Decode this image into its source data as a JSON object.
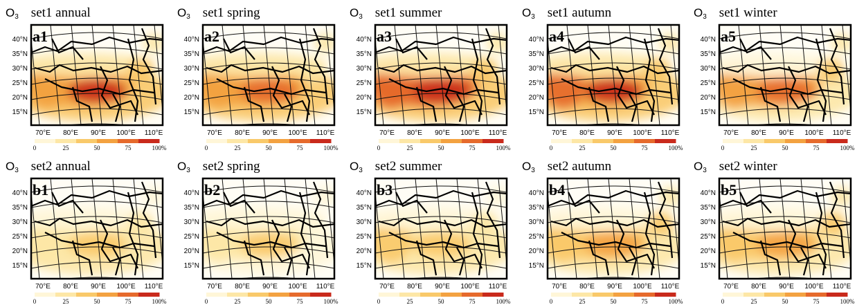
{
  "species": "O",
  "species_subscript": "3",
  "lat_ticks": [
    "40°N",
    "35°N",
    "30°N",
    "25°N",
    "20°N",
    "15°N"
  ],
  "lon_ticks": [
    "70°E",
    "80°E",
    "90°E",
    "100°E",
    "110°E"
  ],
  "colorbar_labels": [
    "0",
    "25",
    "50",
    "75",
    "100%"
  ],
  "colorbar_colors": [
    "#fff6d8",
    "#fde7a6",
    "#f9c96a",
    "#f3a241",
    "#e66a2c",
    "#c92a1c"
  ],
  "panels": [
    {
      "id": "a1",
      "title": "set1 annual",
      "intensity": 0.82,
      "hotspot_east": 0.25
    },
    {
      "id": "a2",
      "title": "set1 spring",
      "intensity": 0.78,
      "hotspot_east": 0.2
    },
    {
      "id": "a3",
      "title": "set1 summer",
      "intensity": 0.9,
      "hotspot_east": 0.15
    },
    {
      "id": "a4",
      "title": "set1 autumn",
      "intensity": 0.88,
      "hotspot_east": 0.3
    },
    {
      "id": "a5",
      "title": "set1 winter",
      "intensity": 0.72,
      "hotspot_east": 0.6
    },
    {
      "id": "b1",
      "title": "set2 annual",
      "intensity": 0.4,
      "hotspot_east": 0.25
    },
    {
      "id": "b2",
      "title": "set2 spring",
      "intensity": 0.35,
      "hotspot_east": 0.2
    },
    {
      "id": "b3",
      "title": "set2 summer",
      "intensity": 0.42,
      "hotspot_east": 0.3
    },
    {
      "id": "b4",
      "title": "set2 autumn",
      "intensity": 0.6,
      "hotspot_east": 0.85
    },
    {
      "id": "b5",
      "title": "set2 winter",
      "intensity": 0.62,
      "hotspot_east": 0.9
    }
  ]
}
